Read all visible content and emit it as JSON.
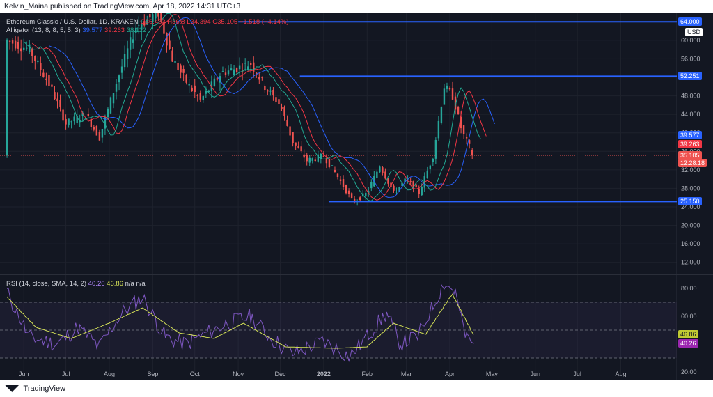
{
  "header": {
    "publisher": "Kelvin_Maina published on TradingView.com, Apr 18, 2022 14:31 UTC+3"
  },
  "footer": {
    "brand": "TradingView"
  },
  "legend": {
    "symbol": "Ethereum Classic / U.S. Dollar, 1D, KRAKEN",
    "ohlc": "O36.433 H36.8 L34.394 C35.105 −1.518 (−4.14%)",
    "alligator": "Alligator (13, 8, 8, 5, 5, 3)",
    "alligator_jaw": "39.577",
    "alligator_teeth": "39.263",
    "alligator_lips": "38.112",
    "rsi": "RSI (14, close, SMA, 14, 2)",
    "rsi_value": "40.26",
    "rsi_sma": "46.86",
    "rsi_na": "n/a n/a"
  },
  "currency": "USD",
  "price_tags": {
    "level_top": "64.000",
    "level_mid": "52.251",
    "jaw": "39.577",
    "teeth": "39.263",
    "lips": "38.112",
    "last": "35.105",
    "countdown": "12:28:18",
    "level_low": "25.150",
    "rsi_sma": "46.86",
    "rsi": "40.26"
  },
  "colors": {
    "bg": "#131722",
    "up": "#26a69a",
    "down": "#ef5350",
    "jaw": "#2962ff",
    "teeth": "#f23645",
    "lips": "#22ab94",
    "level": "#2962ff",
    "rsi": "#7e57c2",
    "rsi_sma": "#d4e157"
  },
  "chart_data": [
    {
      "type": "candlestick",
      "title": "Ethereum Classic / U.S. Dollar, 1D, KRAKEN",
      "x_ticks": [
        "Jun",
        "Jul",
        "Aug",
        "Sep",
        "Oct",
        "Nov",
        "Dec",
        "2022",
        "Feb",
        "Mar",
        "Apr",
        "May",
        "Jun",
        "Jul",
        "Aug"
      ],
      "y_ticks": [
        "12.000",
        "16.000",
        "20.000",
        "24.000",
        "28.000",
        "32.000",
        "36.000",
        "40.000",
        "44.000",
        "48.000",
        "52.000",
        "56.000",
        "60.000",
        "64.000"
      ],
      "ylim": [
        10,
        66
      ],
      "horizontal_levels": [
        64.0,
        52.251,
        25.15
      ],
      "last_close": 35.105,
      "close_path": [
        {
          "x": "2021-05-20",
          "y": 60
        },
        {
          "x": "2021-06-05",
          "y": 58
        },
        {
          "x": "2021-06-20",
          "y": 50
        },
        {
          "x": "2021-07-01",
          "y": 42
        },
        {
          "x": "2021-07-15",
          "y": 44
        },
        {
          "x": "2021-07-25",
          "y": 39
        },
        {
          "x": "2021-08-05",
          "y": 50
        },
        {
          "x": "2021-08-20",
          "y": 63
        },
        {
          "x": "2021-09-05",
          "y": 66
        },
        {
          "x": "2021-09-15",
          "y": 56
        },
        {
          "x": "2021-09-25",
          "y": 51
        },
        {
          "x": "2021-10-05",
          "y": 47
        },
        {
          "x": "2021-10-20",
          "y": 53
        },
        {
          "x": "2021-11-01",
          "y": 54
        },
        {
          "x": "2021-11-10",
          "y": 55
        },
        {
          "x": "2021-11-20",
          "y": 50
        },
        {
          "x": "2021-12-01",
          "y": 46
        },
        {
          "x": "2021-12-10",
          "y": 38
        },
        {
          "x": "2021-12-20",
          "y": 34
        },
        {
          "x": "2022-01-01",
          "y": 35
        },
        {
          "x": "2022-01-10",
          "y": 31
        },
        {
          "x": "2022-01-22",
          "y": 25
        },
        {
          "x": "2022-02-01",
          "y": 27
        },
        {
          "x": "2022-02-10",
          "y": 33
        },
        {
          "x": "2022-02-20",
          "y": 27
        },
        {
          "x": "2022-03-01",
          "y": 30
        },
        {
          "x": "2022-03-10",
          "y": 27
        },
        {
          "x": "2022-03-20",
          "y": 35
        },
        {
          "x": "2022-03-28",
          "y": 50
        },
        {
          "x": "2022-04-03",
          "y": 48
        },
        {
          "x": "2022-04-10",
          "y": 40
        },
        {
          "x": "2022-04-18",
          "y": 35.105
        }
      ]
    },
    {
      "type": "line",
      "title": "RSI (14, close, SMA, 14, 2)",
      "y_ticks": [
        "20.00",
        "40.00",
        "60.00",
        "80.00"
      ],
      "ylim": [
        18,
        88
      ],
      "bands": [
        30,
        50,
        70
      ],
      "series": [
        {
          "name": "RSI",
          "values": [
            {
              "x": "2021-05-20",
              "y": 78
            },
            {
              "x": "2021-06-05",
              "y": 45
            },
            {
              "x": "2021-06-25",
              "y": 40
            },
            {
              "x": "2021-07-10",
              "y": 52
            },
            {
              "x": "2021-07-25",
              "y": 38
            },
            {
              "x": "2021-08-10",
              "y": 62
            },
            {
              "x": "2021-08-25",
              "y": 74
            },
            {
              "x": "2021-09-10",
              "y": 45
            },
            {
              "x": "2021-09-25",
              "y": 40
            },
            {
              "x": "2021-10-10",
              "y": 48
            },
            {
              "x": "2021-10-25",
              "y": 55
            },
            {
              "x": "2021-11-10",
              "y": 60
            },
            {
              "x": "2021-11-25",
              "y": 44
            },
            {
              "x": "2021-12-10",
              "y": 33
            },
            {
              "x": "2022-01-01",
              "y": 42
            },
            {
              "x": "2022-01-20",
              "y": 31
            },
            {
              "x": "2022-02-05",
              "y": 50
            },
            {
              "x": "2022-02-15",
              "y": 62
            },
            {
              "x": "2022-02-25",
              "y": 40
            },
            {
              "x": "2022-03-10",
              "y": 46
            },
            {
              "x": "2022-03-28",
              "y": 84
            },
            {
              "x": "2022-04-05",
              "y": 78
            },
            {
              "x": "2022-04-12",
              "y": 46
            },
            {
              "x": "2022-04-18",
              "y": 40.26
            }
          ]
        },
        {
          "name": "RSI SMA",
          "values": [
            {
              "x": "2021-05-20",
              "y": 74
            },
            {
              "x": "2021-06-10",
              "y": 52
            },
            {
              "x": "2021-07-05",
              "y": 44
            },
            {
              "x": "2021-08-01",
              "y": 55
            },
            {
              "x": "2021-08-25",
              "y": 66
            },
            {
              "x": "2021-09-20",
              "y": 48
            },
            {
              "x": "2021-10-15",
              "y": 44
            },
            {
              "x": "2021-11-05",
              "y": 55
            },
            {
              "x": "2021-12-05",
              "y": 38
            },
            {
              "x": "2022-01-10",
              "y": 37
            },
            {
              "x": "2022-02-01",
              "y": 38
            },
            {
              "x": "2022-02-20",
              "y": 55
            },
            {
              "x": "2022-03-15",
              "y": 47
            },
            {
              "x": "2022-04-03",
              "y": 76
            },
            {
              "x": "2022-04-18",
              "y": 46.86
            }
          ]
        }
      ]
    }
  ]
}
